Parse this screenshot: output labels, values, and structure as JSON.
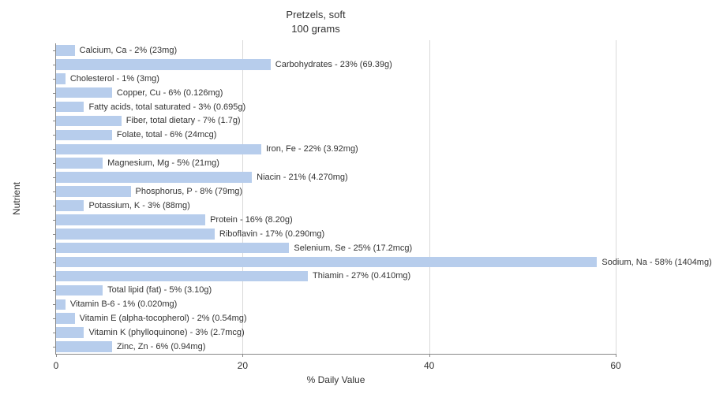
{
  "chart": {
    "type": "bar-horizontal",
    "title_line1": "Pretzels, soft",
    "title_line2": "100 grams",
    "title_fontsize": 13,
    "x_axis": {
      "label": "% Daily Value",
      "min": 0,
      "max": 60,
      "tick_step": 20,
      "ticks": [
        0,
        20,
        40,
        60
      ],
      "label_fontsize": 12,
      "tick_fontsize": 12
    },
    "y_axis": {
      "label": "Nutrient",
      "label_fontsize": 12
    },
    "bar_color": "#b7cdec",
    "grid_color": "#d9d9d9",
    "axis_color": "#888888",
    "text_color": "#333333",
    "background_color": "#ffffff",
    "bar_label_fontsize": 11,
    "bar_height_ratio": 0.76,
    "nutrients": [
      {
        "name": "Calcium, Ca",
        "percent": 2,
        "amount": "23mg"
      },
      {
        "name": "Carbohydrates",
        "percent": 23,
        "amount": "69.39g"
      },
      {
        "name": "Cholesterol",
        "percent": 1,
        "amount": "3mg"
      },
      {
        "name": "Copper, Cu",
        "percent": 6,
        "amount": "0.126mg"
      },
      {
        "name": "Fatty acids, total saturated",
        "percent": 3,
        "amount": "0.695g"
      },
      {
        "name": "Fiber, total dietary",
        "percent": 7,
        "amount": "1.7g"
      },
      {
        "name": "Folate, total",
        "percent": 6,
        "amount": "24mcg"
      },
      {
        "name": "Iron, Fe",
        "percent": 22,
        "amount": "3.92mg"
      },
      {
        "name": "Magnesium, Mg",
        "percent": 5,
        "amount": "21mg"
      },
      {
        "name": "Niacin",
        "percent": 21,
        "amount": "4.270mg"
      },
      {
        "name": "Phosphorus, P",
        "percent": 8,
        "amount": "79mg"
      },
      {
        "name": "Potassium, K",
        "percent": 3,
        "amount": "88mg"
      },
      {
        "name": "Protein",
        "percent": 16,
        "amount": "8.20g"
      },
      {
        "name": "Riboflavin",
        "percent": 17,
        "amount": "0.290mg"
      },
      {
        "name": "Selenium, Se",
        "percent": 25,
        "amount": "17.2mcg"
      },
      {
        "name": "Sodium, Na",
        "percent": 58,
        "amount": "1404mg"
      },
      {
        "name": "Thiamin",
        "percent": 27,
        "amount": "0.410mg"
      },
      {
        "name": "Total lipid (fat)",
        "percent": 5,
        "amount": "3.10g"
      },
      {
        "name": "Vitamin B-6",
        "percent": 1,
        "amount": "0.020mg"
      },
      {
        "name": "Vitamin E (alpha-tocopherol)",
        "percent": 2,
        "amount": "0.54mg"
      },
      {
        "name": "Vitamin K (phylloquinone)",
        "percent": 3,
        "amount": "2.7mcg"
      },
      {
        "name": "Zinc, Zn",
        "percent": 6,
        "amount": "0.94mg"
      }
    ]
  }
}
